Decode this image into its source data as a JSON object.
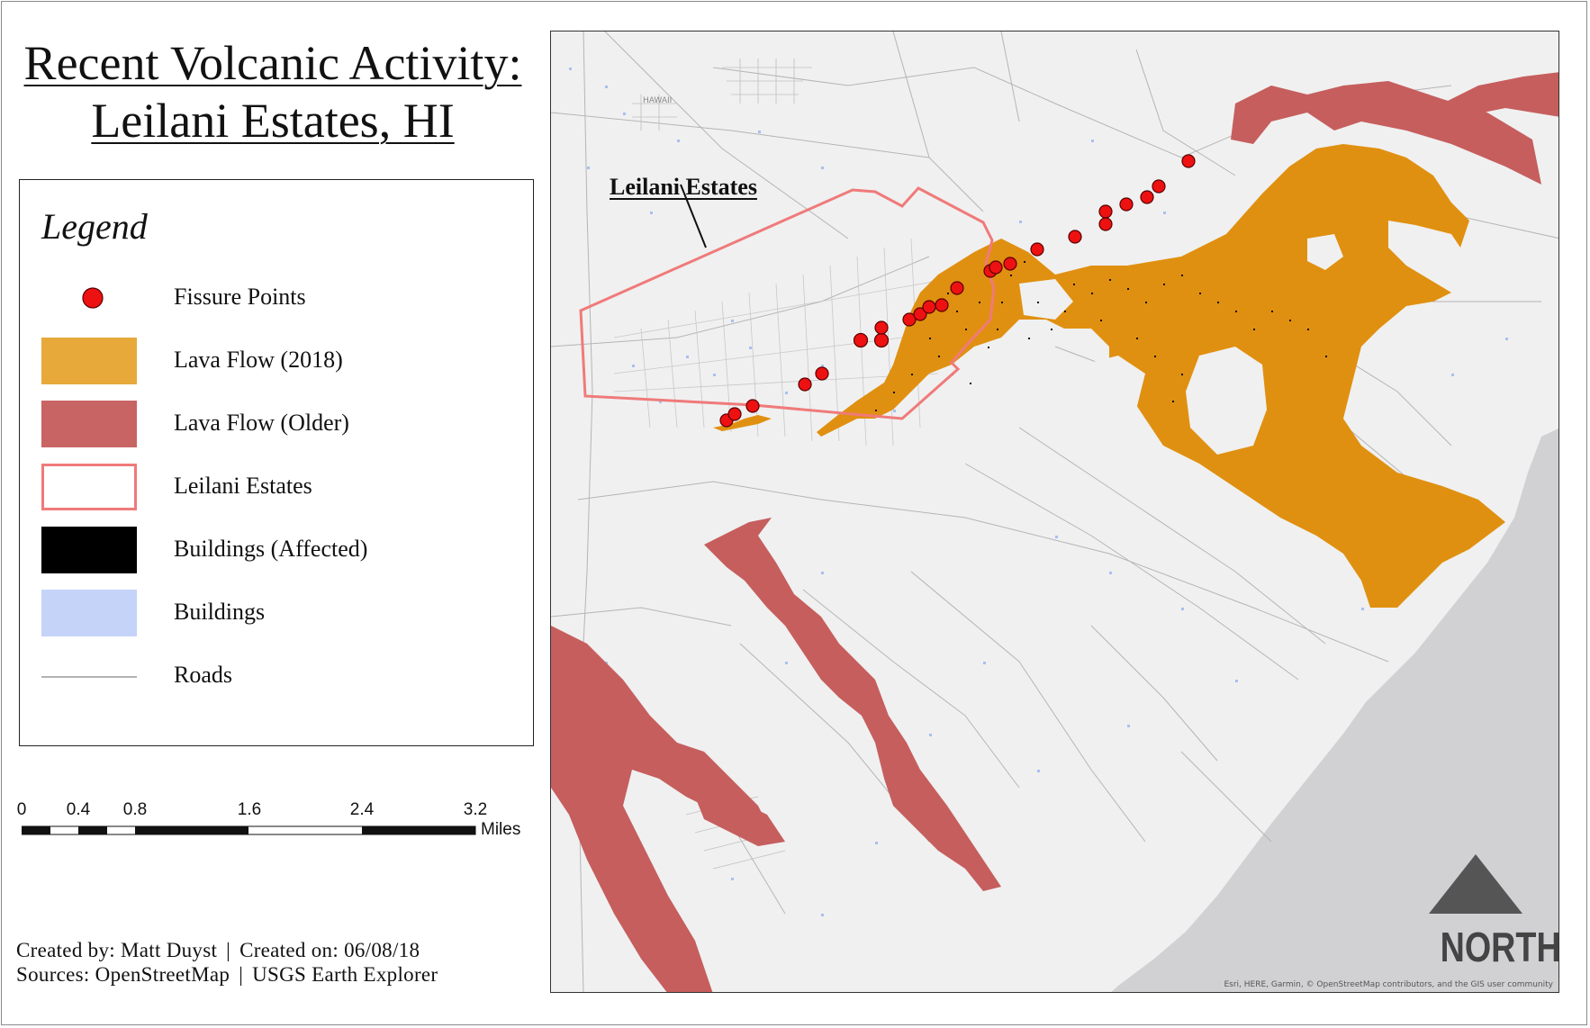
{
  "title": {
    "line1": "Recent Volcanic Activity:",
    "line2": "Leilani Estates, HI"
  },
  "legend": {
    "heading": "Legend",
    "items": [
      {
        "label": "Fissure Points",
        "symbol": "red-dot",
        "color": "#ee1111"
      },
      {
        "label": "Lava Flow (2018)",
        "symbol": "fill",
        "color": "#e6a93a"
      },
      {
        "label": "Lava Flow (Older)",
        "symbol": "fill",
        "color": "#c86464"
      },
      {
        "label": "Leilani Estates",
        "symbol": "outline",
        "color": "#f07a7a"
      },
      {
        "label": "Buildings (Affected)",
        "symbol": "fill",
        "color": "#000000"
      },
      {
        "label": "Buildings",
        "symbol": "fill",
        "color": "#c4d3f7"
      },
      {
        "label": "Roads",
        "symbol": "line",
        "color": "#9a9a9a"
      }
    ]
  },
  "scale_bar": {
    "ticks": [
      "0",
      "0.4",
      "0.8",
      "1.6",
      "2.4",
      "3.2"
    ],
    "units": "Miles"
  },
  "credits": {
    "created_by": "Created by: Matt Duyst",
    "created_on": "Created on: 06/08/18",
    "sources_a": "Sources: OpenStreetMap",
    "sources_b": "USGS Earth Explorer",
    "separator": "|"
  },
  "map": {
    "callout": "Leilani Estates",
    "place_label": "HAWAII",
    "attribution": "Esri, HERE, Garmin, © OpenStreetMap contributors, and the GIS user community",
    "north_label": "NORTH",
    "colors": {
      "land": "#f0f0f0",
      "ocean": "#d1d1d3",
      "lava_2018": "#e09010",
      "lava_older": "#c65e5e",
      "estates_outline": "#f07a7a",
      "fissure": "#ee1111",
      "north_arrow": "#555555"
    }
  }
}
